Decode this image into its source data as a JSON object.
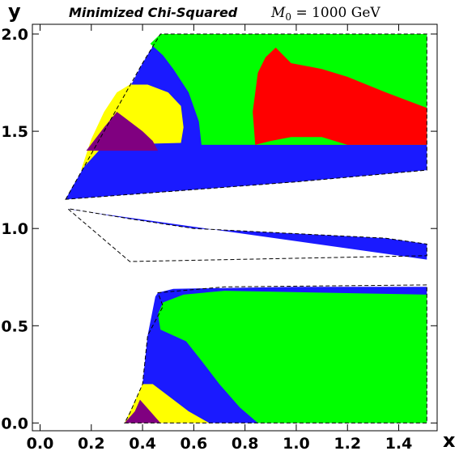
{
  "chart_data": {
    "type": "heatmap",
    "title": "Minimized Chi-Squared",
    "subtitle_parts": {
      "symbol": "M",
      "subscript": "0",
      "value": " = 1000 GeV"
    },
    "xlabel": "x",
    "ylabel": "y",
    "xlim": [
      -0.03,
      1.55
    ],
    "ylim": [
      -0.04,
      2.05
    ],
    "x_ticks": [
      "0.0",
      "0.2",
      "0.4",
      "0.6",
      "0.8",
      "1.0",
      "1.2",
      "1.4"
    ],
    "y_ticks": [
      "0.0",
      "0.5",
      "1.0",
      "1.5",
      "2.0"
    ],
    "grid": false,
    "regions": [
      {
        "color": "#1a1aff",
        "points": [
          [
            0.33,
            0.0
          ],
          [
            0.36,
            0.05
          ],
          [
            0.4,
            0.2
          ],
          [
            0.42,
            0.45
          ],
          [
            0.45,
            0.65
          ],
          [
            0.46,
            0.67
          ],
          [
            0.52,
            0.69
          ],
          [
            1.0,
            0.7
          ],
          [
            1.51,
            0.7
          ],
          [
            1.51,
            0.0
          ]
        ]
      },
      {
        "color": "#00ff00",
        "points": [
          [
            0.48,
            0.62
          ],
          [
            0.56,
            0.66
          ],
          [
            0.72,
            0.68
          ],
          [
            1.51,
            0.66
          ],
          [
            1.51,
            0.0
          ],
          [
            0.85,
            0.0
          ],
          [
            0.78,
            0.08
          ],
          [
            0.7,
            0.2
          ],
          [
            0.63,
            0.32
          ],
          [
            0.57,
            0.42
          ],
          [
            0.47,
            0.48
          ],
          [
            0.46,
            0.56
          ]
        ]
      },
      {
        "color": "#ffff00",
        "points": [
          [
            0.33,
            0.0
          ],
          [
            0.66,
            0.0
          ],
          [
            0.58,
            0.06
          ],
          [
            0.5,
            0.14
          ],
          [
            0.44,
            0.2
          ],
          [
            0.4,
            0.2
          ]
        ]
      },
      {
        "color": "#800080",
        "points": [
          [
            0.33,
            0.0
          ],
          [
            0.47,
            0.0
          ],
          [
            0.43,
            0.06
          ],
          [
            0.39,
            0.12
          ],
          [
            0.37,
            0.06
          ]
        ]
      },
      {
        "color": "#1a1aff",
        "points": [
          [
            0.11,
            1.1
          ],
          [
            1.51,
            0.84
          ],
          [
            1.51,
            0.92
          ],
          [
            1.35,
            0.95
          ],
          [
            0.6,
            1.0
          ],
          [
            0.35,
            1.05
          ],
          [
            0.12,
            1.1
          ]
        ]
      },
      {
        "color": "#1a1aff",
        "points": [
          [
            0.1,
            1.15
          ],
          [
            0.12,
            1.2
          ],
          [
            0.2,
            1.38
          ],
          [
            0.25,
            1.5
          ],
          [
            0.34,
            1.7
          ],
          [
            0.4,
            1.85
          ],
          [
            0.47,
            2.0
          ],
          [
            0.55,
            2.0
          ],
          [
            0.6,
            2.0
          ],
          [
            1.51,
            2.0
          ],
          [
            1.51,
            1.3
          ],
          [
            1.0,
            1.24
          ],
          [
            0.6,
            1.2
          ],
          [
            0.3,
            1.17
          ]
        ]
      },
      {
        "color": "#00ff00",
        "points": [
          [
            0.47,
            2.0
          ],
          [
            1.51,
            2.0
          ],
          [
            1.51,
            1.43
          ],
          [
            0.63,
            1.43
          ],
          [
            0.62,
            1.55
          ],
          [
            0.58,
            1.7
          ],
          [
            0.52,
            1.82
          ],
          [
            0.48,
            1.89
          ],
          [
            0.43,
            1.95
          ]
        ]
      },
      {
        "color": "#ff0000",
        "points": [
          [
            0.84,
            1.43
          ],
          [
            1.51,
            1.43
          ],
          [
            1.51,
            1.62
          ],
          [
            1.35,
            1.7
          ],
          [
            1.2,
            1.78
          ],
          [
            1.1,
            1.82
          ],
          [
            0.98,
            1.85
          ],
          [
            0.92,
            1.93
          ],
          [
            0.88,
            1.88
          ],
          [
            0.85,
            1.8
          ],
          [
            0.83,
            1.6
          ]
        ]
      },
      {
        "color": "#00ff00",
        "points": [
          [
            0.84,
            1.43
          ],
          [
            1.2,
            1.43
          ],
          [
            1.1,
            1.47
          ],
          [
            0.98,
            1.47
          ],
          [
            0.9,
            1.45
          ]
        ]
      },
      {
        "color": "#ffff00",
        "points": [
          [
            0.16,
            1.3
          ],
          [
            0.25,
            1.43
          ],
          [
            0.55,
            1.44
          ],
          [
            0.56,
            1.52
          ],
          [
            0.55,
            1.63
          ],
          [
            0.5,
            1.7
          ],
          [
            0.42,
            1.74
          ],
          [
            0.35,
            1.74
          ],
          [
            0.3,
            1.7
          ],
          [
            0.25,
            1.6
          ],
          [
            0.2,
            1.46
          ]
        ]
      },
      {
        "color": "#800080",
        "points": [
          [
            0.18,
            1.4
          ],
          [
            0.46,
            1.4
          ],
          [
            0.44,
            1.45
          ],
          [
            0.4,
            1.5
          ],
          [
            0.33,
            1.57
          ],
          [
            0.3,
            1.6
          ],
          [
            0.25,
            1.52
          ]
        ]
      }
    ],
    "outlines": [
      [
        [
          0.33,
          0.0
        ],
        [
          1.51,
          0.0
        ],
        [
          1.51,
          0.71
        ],
        [
          0.72,
          0.7
        ],
        [
          0.46,
          0.67
        ],
        [
          0.48,
          0.6
        ],
        [
          0.42,
          0.45
        ],
        [
          0.4,
          0.2
        ],
        [
          0.35,
          0.05
        ]
      ],
      [
        [
          0.11,
          1.1
        ],
        [
          0.35,
          0.83
        ],
        [
          1.51,
          0.86
        ],
        [
          1.51,
          0.92
        ],
        [
          1.35,
          0.95
        ],
        [
          0.6,
          1.0
        ],
        [
          0.35,
          1.05
        ],
        [
          0.12,
          1.1
        ]
      ],
      [
        [
          0.1,
          1.15
        ],
        [
          0.4,
          1.85
        ],
        [
          0.47,
          2.0
        ],
        [
          1.51,
          2.0
        ],
        [
          1.51,
          1.3
        ],
        [
          1.0,
          1.24
        ],
        [
          0.6,
          1.2
        ],
        [
          0.3,
          1.17
        ]
      ]
    ],
    "colors": {
      "blue": "#1a1aff",
      "green": "#00ff00",
      "red": "#ff0000",
      "yellow": "#ffff00",
      "purple": "#800080"
    }
  }
}
